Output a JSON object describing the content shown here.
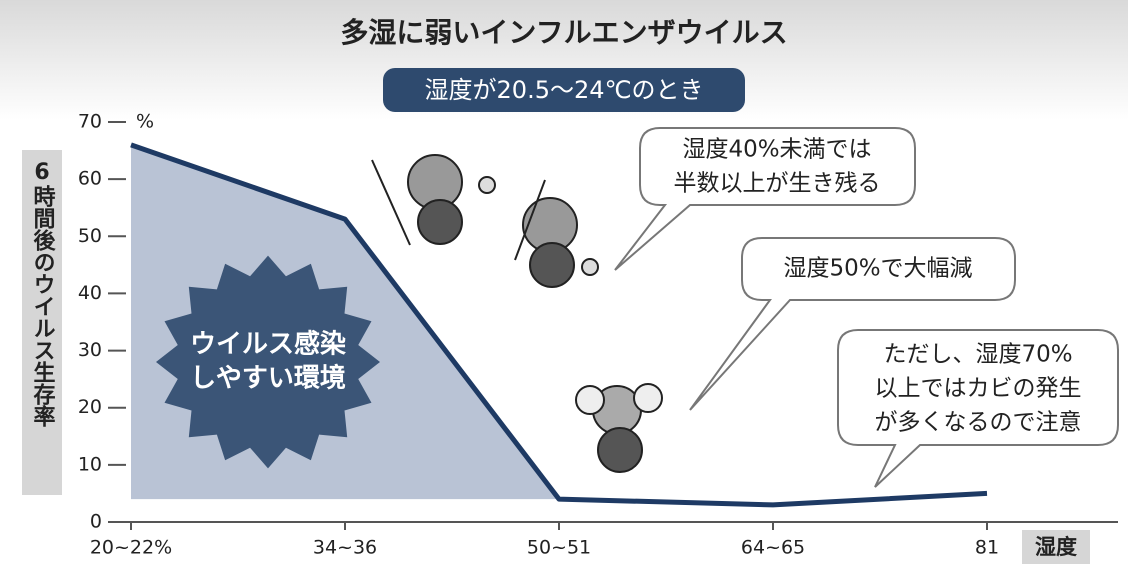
{
  "chart_data": {
    "type": "line",
    "title": "多湿に弱いインフルエンザウイルス",
    "subtitle": "湿度が20.5～24℃のとき",
    "y_label": "6時間後のウイルス生存率",
    "y_unit": "%",
    "x_label": "湿度",
    "categories": [
      "20~22%",
      "34~36",
      "50~51",
      "64~65",
      "81"
    ],
    "series": [
      {
        "name": "6時間後のウイルス生存率",
        "color": "#1e3a64",
        "values": [
          66,
          53,
          4,
          3,
          5
        ]
      }
    ],
    "ylim": [
      0,
      70
    ],
    "yticks": [
      0,
      10,
      20,
      30,
      40,
      50,
      60,
      70
    ],
    "area_color": "#b9c3d5",
    "burst_text": [
      "ウイルス感染",
      "しやすい環境"
    ],
    "annotations": [
      [
        "湿度40%未満では",
        "半数以上が生き残る"
      ],
      [
        "湿度50%で大幅減"
      ],
      [
        "ただし、湿度70%",
        "以上ではカビの発生",
        "が多くなるので注意"
      ]
    ]
  }
}
